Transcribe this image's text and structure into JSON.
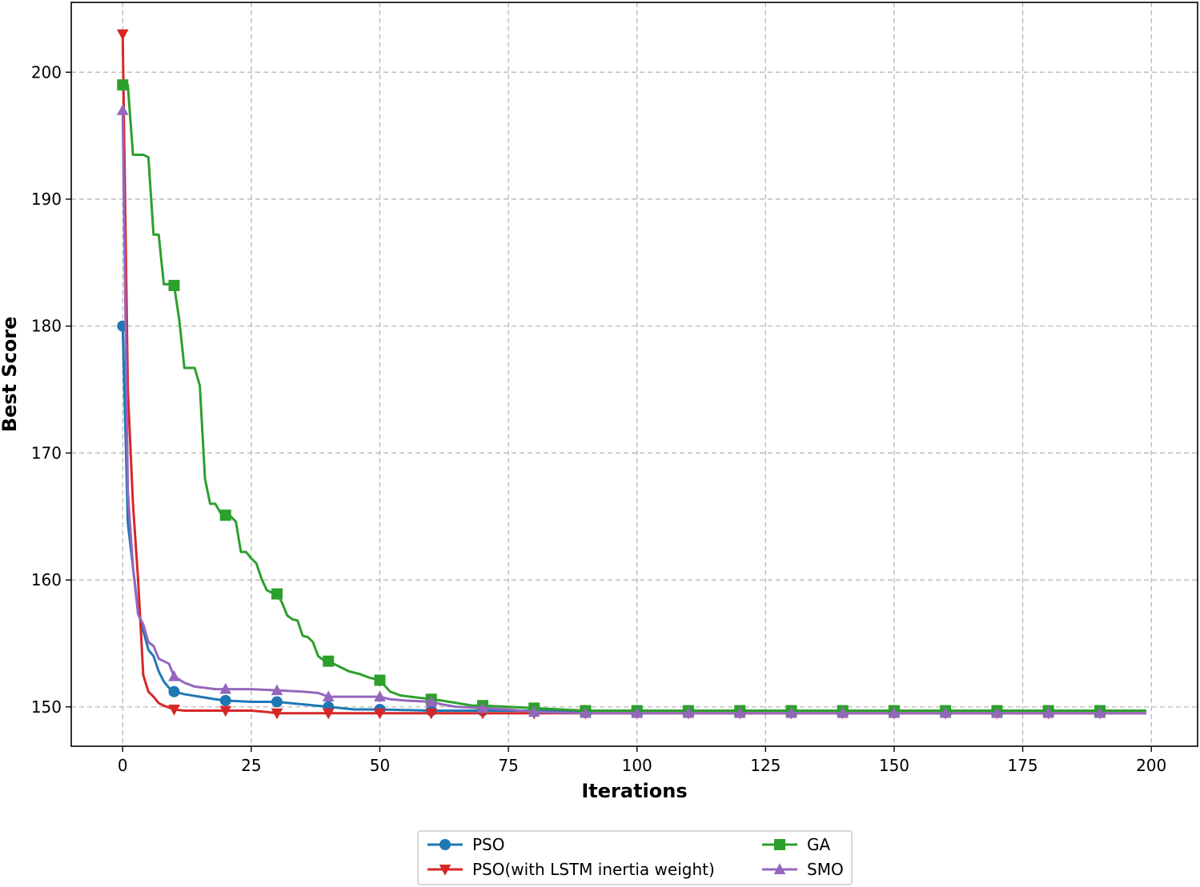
{
  "chart_data": {
    "type": "line",
    "title": "",
    "xlabel": "Iterations",
    "ylabel": "Best Score",
    "xlim": [
      -10,
      209
    ],
    "ylim": [
      146.9,
      205.5
    ],
    "xticks": [
      0,
      25,
      50,
      75,
      100,
      125,
      150,
      175,
      200
    ],
    "xtick_labels": [
      "0",
      "25",
      "50",
      "75",
      "100",
      "125",
      "150",
      "175",
      "200"
    ],
    "yticks": [
      150,
      160,
      170,
      180,
      190,
      200
    ],
    "ytick_labels": [
      "150",
      "160",
      "170",
      "180",
      "190",
      "200"
    ],
    "grid": true,
    "legend_position": "bottom-center outside, 2 columns",
    "series": [
      {
        "name": "PSO",
        "color": "#1f77b4",
        "marker": "circle",
        "x": [
          0,
          1,
          2,
          3,
          4,
          5,
          6,
          7,
          8,
          9,
          10,
          12,
          15,
          18,
          20,
          25,
          30,
          35,
          40,
          45,
          50,
          60,
          70,
          80,
          90,
          100,
          110,
          120,
          130,
          140,
          150,
          160,
          170,
          180,
          190,
          199
        ],
        "y": [
          180,
          164.5,
          161,
          157.5,
          156,
          154.5,
          154,
          152.8,
          152,
          151.5,
          151.2,
          151,
          150.8,
          150.6,
          150.5,
          150.4,
          150.4,
          150.2,
          150,
          149.8,
          149.8,
          149.7,
          149.7,
          149.7,
          149.7,
          149.7,
          149.7,
          149.7,
          149.7,
          149.7,
          149.7,
          149.7,
          149.7,
          149.7,
          149.7,
          149.7
        ]
      },
      {
        "name": "PSO(with LSTM inertia weight)",
        "color": "#d62728",
        "marker": "triangle-down",
        "x": [
          0,
          1,
          2,
          3,
          4,
          5,
          6,
          7,
          8,
          10,
          12,
          15,
          20,
          25,
          28,
          30,
          35,
          40,
          50,
          60,
          70,
          80,
          90,
          100,
          110,
          120,
          130,
          140,
          150,
          160,
          170,
          180,
          190,
          199
        ],
        "y": [
          203,
          175,
          166,
          160,
          152.5,
          151.2,
          150.8,
          150.3,
          150.1,
          149.8,
          149.7,
          149.7,
          149.7,
          149.7,
          149.6,
          149.5,
          149.5,
          149.5,
          149.5,
          149.5,
          149.5,
          149.5,
          149.5,
          149.5,
          149.5,
          149.5,
          149.5,
          149.5,
          149.5,
          149.5,
          149.5,
          149.5,
          149.5,
          149.5
        ]
      },
      {
        "name": "GA",
        "color": "#2ca02c",
        "marker": "square",
        "x": [
          0,
          1,
          2,
          3,
          4,
          5,
          6,
          7,
          8,
          9,
          10,
          11,
          12,
          13,
          14,
          15,
          16,
          17,
          18,
          19,
          20,
          21,
          22,
          23,
          24,
          25,
          26,
          27,
          28,
          29,
          30,
          31,
          32,
          33,
          34,
          35,
          36,
          37,
          38,
          39,
          40,
          42,
          44,
          46,
          48,
          50,
          52,
          54,
          56,
          58,
          60,
          62,
          65,
          68,
          70,
          75,
          80,
          85,
          90,
          100,
          110,
          120,
          130,
          140,
          150,
          160,
          170,
          180,
          190,
          199
        ],
        "y": [
          199,
          199,
          193.5,
          193.5,
          193.5,
          193.3,
          187.2,
          187.2,
          183.3,
          183.3,
          183.2,
          180.5,
          176.7,
          176.7,
          176.7,
          175.3,
          168,
          166,
          166,
          165.3,
          165.1,
          165,
          164.6,
          162.2,
          162.2,
          161.7,
          161.3,
          160.1,
          159.2,
          159,
          158.9,
          158.2,
          157.2,
          156.9,
          156.8,
          155.6,
          155.5,
          155.1,
          154,
          153.7,
          153.6,
          153.2,
          152.8,
          152.6,
          152.3,
          152.1,
          151.2,
          150.9,
          150.8,
          150.7,
          150.6,
          150.5,
          150.3,
          150.1,
          150.1,
          150,
          149.9,
          149.8,
          149.7,
          149.7,
          149.7,
          149.7,
          149.7,
          149.7,
          149.7,
          149.7,
          149.7,
          149.7,
          149.7,
          149.7
        ]
      },
      {
        "name": "SMO",
        "color": "#9467bd",
        "marker": "triangle-up",
        "x": [
          0,
          1,
          2,
          3,
          4,
          5,
          6,
          7,
          8,
          9,
          10,
          12,
          14,
          16,
          18,
          20,
          25,
          30,
          35,
          38,
          40,
          45,
          50,
          52,
          55,
          60,
          62,
          65,
          70,
          75,
          80,
          90,
          100,
          110,
          120,
          130,
          140,
          150,
          160,
          170,
          180,
          190,
          199
        ],
        "y": [
          197,
          167,
          161,
          157.3,
          156.5,
          155.1,
          154.8,
          153.8,
          153.6,
          153.4,
          152.4,
          151.9,
          151.6,
          151.5,
          151.4,
          151.4,
          151.4,
          151.3,
          151.2,
          151.1,
          150.8,
          150.8,
          150.8,
          150.6,
          150.5,
          150.4,
          150.2,
          150,
          149.9,
          149.8,
          149.6,
          149.5,
          149.5,
          149.5,
          149.5,
          149.5,
          149.5,
          149.5,
          149.5,
          149.5,
          149.5,
          149.5,
          149.5
        ]
      }
    ],
    "marker_every": 10
  }
}
